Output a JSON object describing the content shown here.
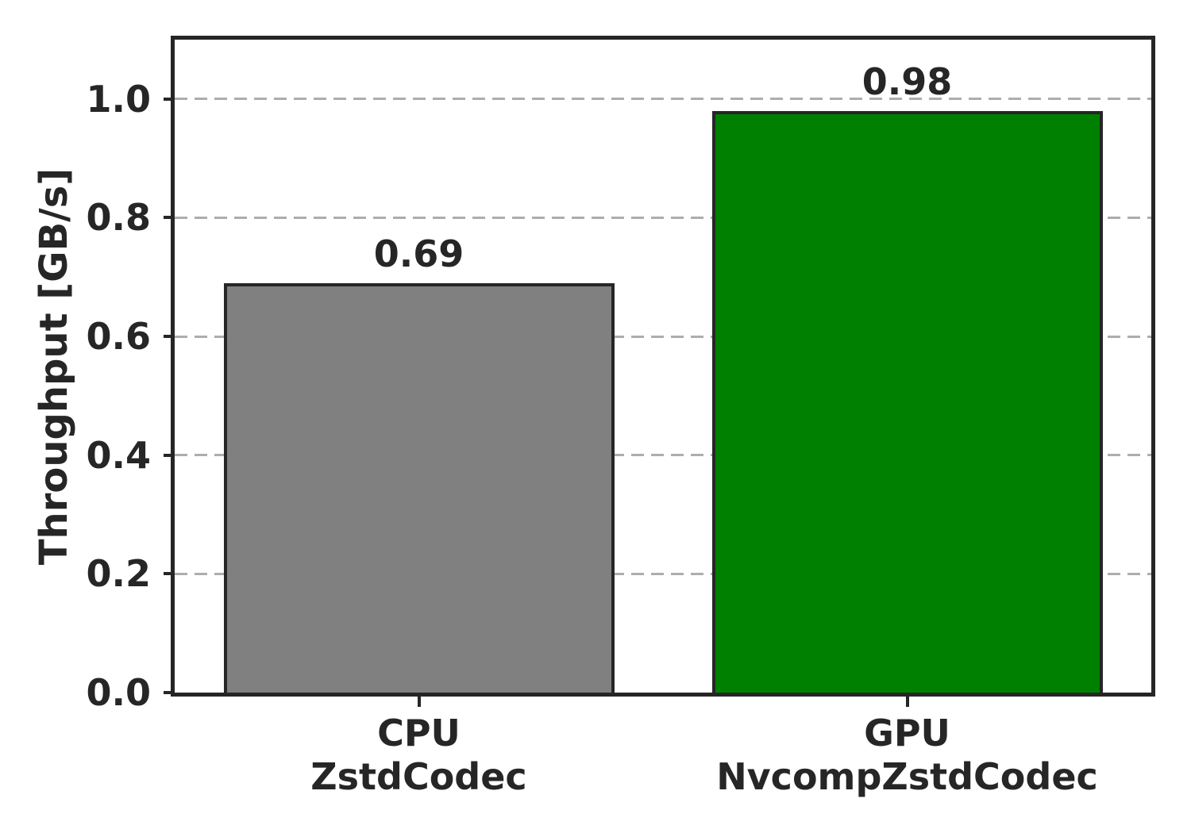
{
  "chart_data": {
    "type": "bar",
    "title": "",
    "xlabel": "",
    "ylabel": "Throughput [GB/s]",
    "categories": [
      "CPU\nZstdCodec",
      "GPU\nNvcompZstdCodec"
    ],
    "values": [
      0.69,
      0.98
    ],
    "bar_value_labels": [
      "0.69",
      "0.98"
    ],
    "bar_colors": [
      "#808080",
      "#008000"
    ],
    "bar_edge_color": "#262626",
    "ylim": [
      0,
      1.1
    ],
    "yticks": [
      0.0,
      0.2,
      0.4,
      0.6,
      0.8,
      1.0
    ],
    "ytick_labels": [
      "0.0",
      "0.2",
      "0.4",
      "0.6",
      "0.8",
      "1.0"
    ],
    "grid": "horizontal dashed",
    "grid_color": "#adadad",
    "legend": "none",
    "text_color": "#262626",
    "background_color": "#ffffff"
  }
}
